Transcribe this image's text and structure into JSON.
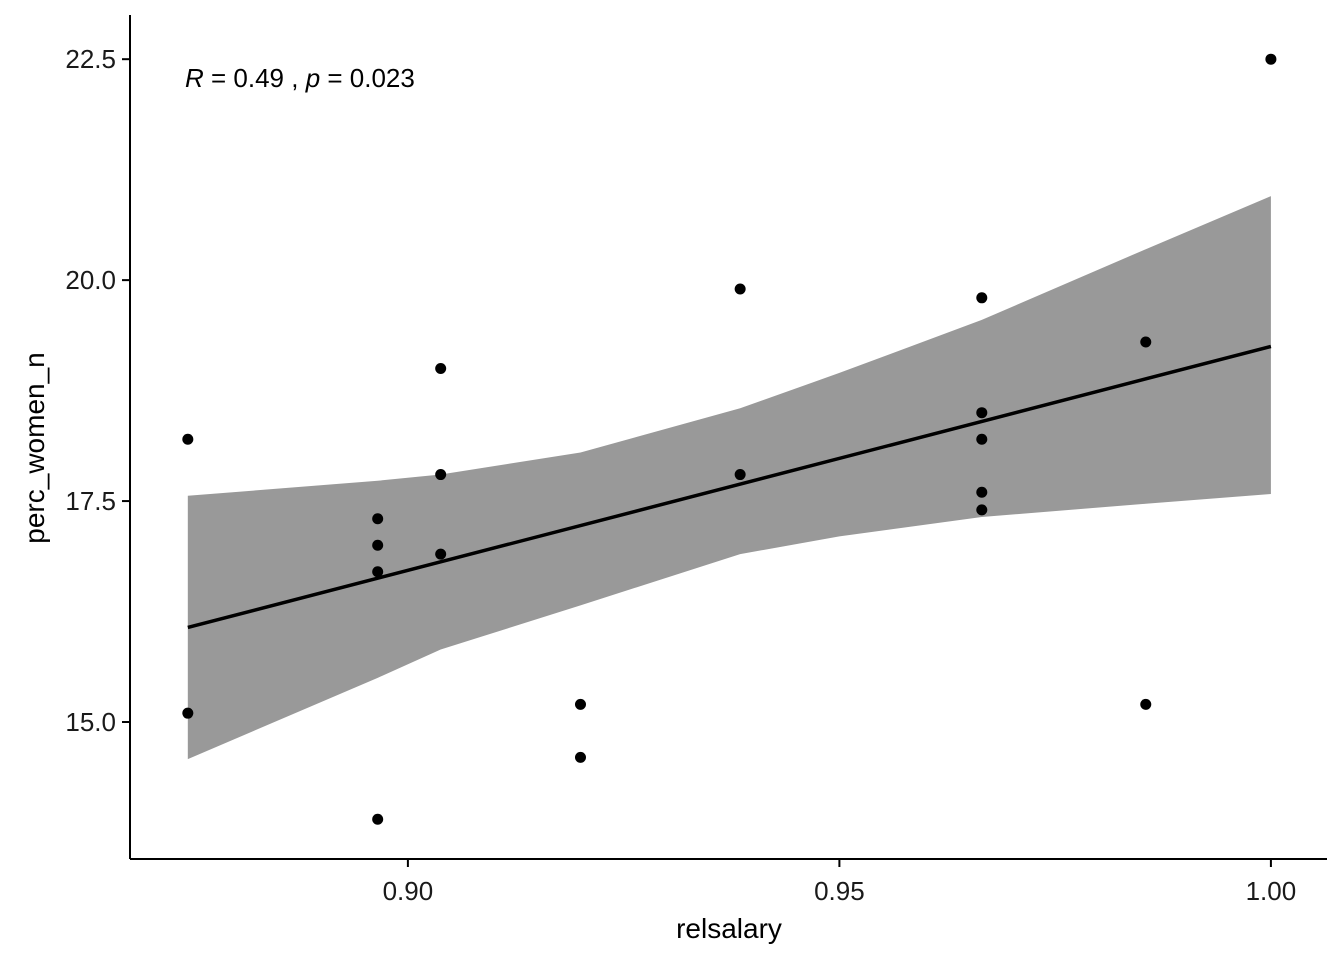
{
  "chart_data": {
    "type": "scatter",
    "title": "",
    "xlabel": "relsalary",
    "ylabel": "perc_women_n",
    "xlim": [
      0.8678,
      1.0065
    ],
    "ylim": [
      13.45,
      23.0
    ],
    "x_ticks": [
      0.9,
      0.95,
      1.0
    ],
    "x_tick_labels": [
      "0.90",
      "0.95",
      "1.00"
    ],
    "y_ticks": [
      15.0,
      17.5,
      20.0,
      22.5
    ],
    "y_tick_labels": [
      "15.0",
      "17.5",
      "20.0",
      "22.5"
    ],
    "grid": false,
    "legend": "none",
    "annotation": {
      "r_symbol": "R",
      "r_text": " = 0.49 , ",
      "p_symbol": "p",
      "p_text": " = 0.023"
    },
    "points": [
      {
        "x": 0.8745,
        "y": 18.2
      },
      {
        "x": 0.8745,
        "y": 15.1
      },
      {
        "x": 0.8965,
        "y": 17.3
      },
      {
        "x": 0.8965,
        "y": 17.0
      },
      {
        "x": 0.8965,
        "y": 16.7
      },
      {
        "x": 0.8965,
        "y": 13.9
      },
      {
        "x": 0.9038,
        "y": 19.0
      },
      {
        "x": 0.9038,
        "y": 17.8
      },
      {
        "x": 0.9038,
        "y": 16.9
      },
      {
        "x": 0.92,
        "y": 15.2
      },
      {
        "x": 0.92,
        "y": 14.6
      },
      {
        "x": 0.9385,
        "y": 19.9
      },
      {
        "x": 0.9385,
        "y": 17.8
      },
      {
        "x": 0.9665,
        "y": 19.8
      },
      {
        "x": 0.9665,
        "y": 18.5
      },
      {
        "x": 0.9665,
        "y": 18.2
      },
      {
        "x": 0.9665,
        "y": 17.6
      },
      {
        "x": 0.9665,
        "y": 17.4
      },
      {
        "x": 0.9855,
        "y": 19.3
      },
      {
        "x": 0.9855,
        "y": 15.2
      },
      {
        "x": 1.0,
        "y": 22.5
      }
    ],
    "fit_line": {
      "x": [
        0.8745,
        1.0
      ],
      "y": [
        16.07,
        19.25
      ]
    },
    "confidence_band": {
      "x": [
        0.8745,
        0.8965,
        0.9038,
        0.92,
        0.9385,
        0.95,
        0.9665,
        0.9855,
        1.0
      ],
      "upper": [
        17.56,
        17.73,
        17.8,
        18.05,
        18.55,
        18.95,
        19.55,
        20.35,
        20.95
      ],
      "lower": [
        14.58,
        15.5,
        15.82,
        16.32,
        16.9,
        17.1,
        17.32,
        17.47,
        17.58
      ]
    },
    "colors": {
      "points": "#000000",
      "line": "#000000",
      "band": "#999999",
      "axis": "#000000",
      "background": "#ffffff"
    }
  }
}
